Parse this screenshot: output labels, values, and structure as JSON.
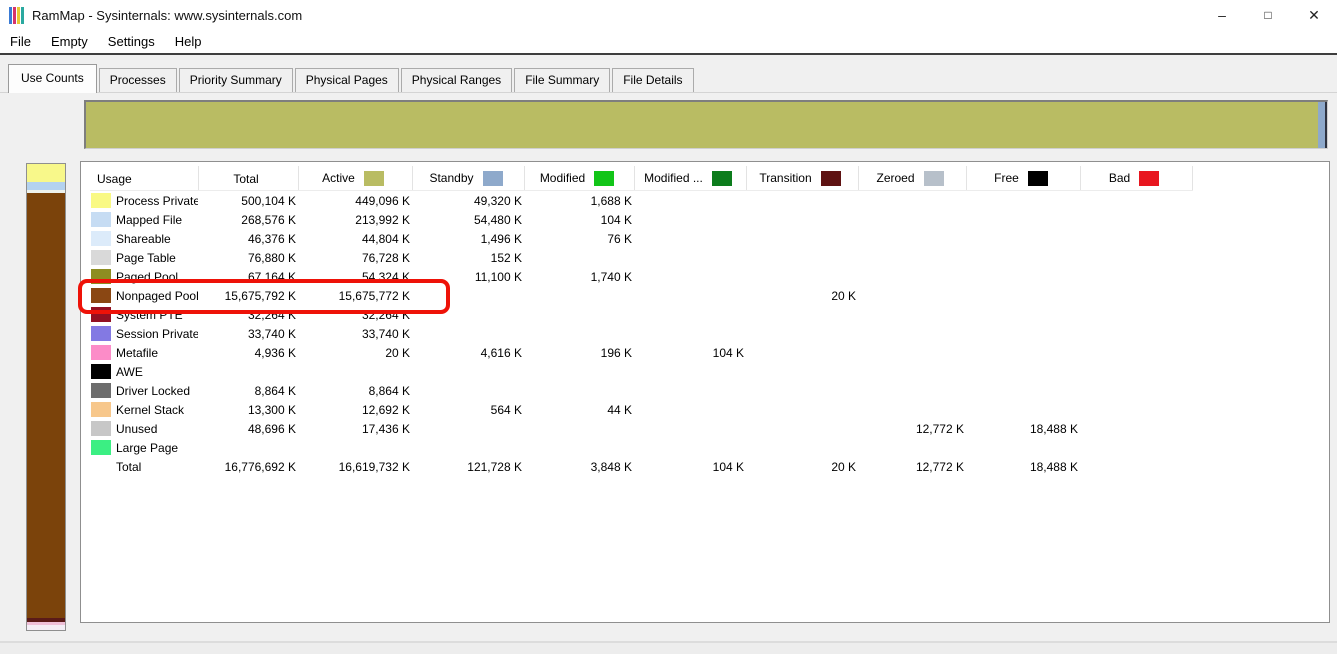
{
  "window": {
    "title": "RamMap - Sysinternals: www.sysinternals.com",
    "icon_colors": [
      "#3a7bd5",
      "#d6336c",
      "#e8c832",
      "#2aa9a0"
    ],
    "minimize_glyph": "–",
    "maximize_glyph": "□",
    "close_glyph": "✕"
  },
  "menu": {
    "items": [
      "File",
      "Empty",
      "Settings",
      "Help"
    ]
  },
  "tabs": {
    "selected": "Use Counts",
    "items": [
      "Use Counts",
      "Processes",
      "Priority Summary",
      "Physical Pages",
      "Physical Ranges",
      "File Summary",
      "File Details"
    ]
  },
  "top_bar": {
    "segments": [
      {
        "name": "active-segment",
        "color": "#b9bc63",
        "size": "flex"
      },
      {
        "name": "standby-segment",
        "color": "#8ea9cb",
        "size": "7px"
      },
      {
        "name": "edge-segment",
        "color": "#2f3340",
        "size": "2px"
      }
    ]
  },
  "side_bar": {
    "segments": [
      {
        "name": "process-private-segment",
        "color": "#f8f88a",
        "size": "18px"
      },
      {
        "name": "mapped-file-segment",
        "color": "#b4d2ef",
        "size": "8px"
      },
      {
        "name": "shareable-segment",
        "color": "#eef2ec",
        "size": "3px"
      },
      {
        "name": "nonpaged-pool-segment",
        "color": "#7b430b",
        "size": "flex"
      },
      {
        "name": "transition-segment",
        "color": "#5a1a18",
        "size": "4px"
      },
      {
        "name": "metafile-segment",
        "color": "#efc0d8",
        "size": "3px"
      },
      {
        "name": "free-segment",
        "color": "#f4eef6",
        "size": "5px"
      }
    ]
  },
  "table": {
    "columns": [
      {
        "label": "Usage",
        "swatch": null
      },
      {
        "label": "Total",
        "swatch": null
      },
      {
        "label": "Active",
        "swatch": "#b9bc63"
      },
      {
        "label": "Standby",
        "swatch": "#8ea9cb"
      },
      {
        "label": "Modified",
        "swatch": "#12c518"
      },
      {
        "label": "Modified ...",
        "swatch": "#0c7c1c"
      },
      {
        "label": "Transition",
        "swatch": "#5e1212"
      },
      {
        "label": "Zeroed",
        "swatch": "#b7c0ca"
      },
      {
        "label": "Free",
        "swatch": "#000000"
      },
      {
        "label": "Bad",
        "swatch": "#e8161f"
      }
    ],
    "rows": [
      {
        "label": "Process Private",
        "swatch": "#f9f984",
        "highlight": false,
        "values": [
          "500,104 K",
          "449,096 K",
          "49,320 K",
          "1,688 K",
          "",
          "",
          "",
          "",
          ""
        ]
      },
      {
        "label": "Mapped File",
        "swatch": "#c6dcf3",
        "highlight": false,
        "values": [
          "268,576 K",
          "213,992 K",
          "54,480 K",
          "104 K",
          "",
          "",
          "",
          "",
          ""
        ]
      },
      {
        "label": "Shareable",
        "swatch": "#dcebfa",
        "highlight": false,
        "values": [
          "46,376 K",
          "44,804 K",
          "1,496 K",
          "76 K",
          "",
          "",
          "",
          "",
          ""
        ]
      },
      {
        "label": "Page Table",
        "swatch": "#d9d9d9",
        "highlight": false,
        "values": [
          "76,880 K",
          "76,728 K",
          "152 K",
          "",
          "",
          "",
          "",
          "",
          ""
        ]
      },
      {
        "label": "Paged Pool",
        "swatch": "#8d8d21",
        "highlight": false,
        "values": [
          "67,164 K",
          "54,324 K",
          "11,100 K",
          "1,740 K",
          "",
          "",
          "",
          "",
          ""
        ]
      },
      {
        "label": "Nonpaged Pool",
        "swatch": "#8a4713",
        "highlight": true,
        "values": [
          "15,675,792 K",
          "15,675,772 K",
          "",
          "",
          "",
          "20 K",
          "",
          "",
          ""
        ]
      },
      {
        "label": "System PTE",
        "swatch": "#931022",
        "highlight": false,
        "values": [
          "32,264 K",
          "32,264 K",
          "",
          "",
          "",
          "",
          "",
          "",
          ""
        ]
      },
      {
        "label": "Session Private",
        "swatch": "#8379e3",
        "highlight": false,
        "values": [
          "33,740 K",
          "33,740 K",
          "",
          "",
          "",
          "",
          "",
          "",
          ""
        ]
      },
      {
        "label": "Metafile",
        "swatch": "#fc8cc8",
        "highlight": false,
        "values": [
          "4,936 K",
          "20 K",
          "4,616 K",
          "196 K",
          "104 K",
          "",
          "",
          "",
          ""
        ]
      },
      {
        "label": "AWE",
        "swatch": "#000000",
        "highlight": false,
        "values": [
          "",
          "",
          "",
          "",
          "",
          "",
          "",
          "",
          ""
        ]
      },
      {
        "label": "Driver Locked",
        "swatch": "#6d6d6d",
        "highlight": false,
        "values": [
          "8,864 K",
          "8,864 K",
          "",
          "",
          "",
          "",
          "",
          "",
          ""
        ]
      },
      {
        "label": "Kernel Stack",
        "swatch": "#f7c78b",
        "highlight": false,
        "values": [
          "13,300 K",
          "12,692 K",
          "564 K",
          "44 K",
          "",
          "",
          "",
          "",
          ""
        ]
      },
      {
        "label": "Unused",
        "swatch": "#c7c7c7",
        "highlight": false,
        "values": [
          "48,696 K",
          "17,436 K",
          "",
          "",
          "",
          "",
          "12,772 K",
          "18,488 K",
          ""
        ]
      },
      {
        "label": "Large Page",
        "swatch": "#3bef83",
        "highlight": false,
        "values": [
          "",
          "",
          "",
          "",
          "",
          "",
          "",
          "",
          ""
        ]
      },
      {
        "label": "Total",
        "swatch": null,
        "highlight": false,
        "values": [
          "16,776,692 K",
          "16,619,732 K",
          "121,728 K",
          "3,848 K",
          "104 K",
          "20 K",
          "12,772 K",
          "18,488 K",
          ""
        ]
      }
    ]
  },
  "annotation": {
    "highlight_color": "#ee1208"
  }
}
